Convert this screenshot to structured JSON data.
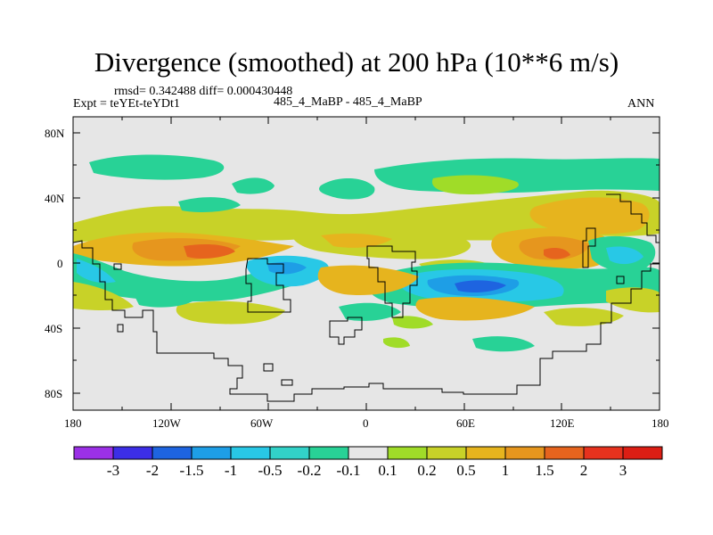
{
  "chart_data": {
    "type": "heatmap",
    "title": "Divergence (smoothed) at 200 hPa (10**6 m/s)",
    "stats": "rmsd= 0.342488 diff= 0.000430448",
    "left_string": "Expt = teYEt-teYDt1",
    "center_string": "485_4_MaBP - 485_4_MaBP",
    "right_string": "ANN",
    "x_ticks": [
      "180",
      "120W",
      "60W",
      "0",
      "60E",
      "120E",
      "180"
    ],
    "y_ticks": [
      "80N",
      "40N",
      "0",
      "40S",
      "80S"
    ],
    "xlim": [
      -180,
      180
    ],
    "ylim": [
      -90,
      90
    ],
    "colorbar": {
      "labels": [
        "-3",
        "-2",
        "-1.5",
        "-1",
        "-0.5",
        "-0.2",
        "-0.1",
        "0.1",
        "0.2",
        "0.5",
        "1",
        "1.5",
        "2",
        "3"
      ],
      "colors": [
        "#9b30e6",
        "#3c2ee6",
        "#1e64e0",
        "#1e9ee6",
        "#28c8e6",
        "#32d2c8",
        "#28d296",
        "#e6e6e6",
        "#a0dc28",
        "#c8d228",
        "#e6b41e",
        "#e6961e",
        "#e6641e",
        "#e6321e",
        "#dc1e14"
      ]
    },
    "missing_color": "#e6e6e6"
  }
}
